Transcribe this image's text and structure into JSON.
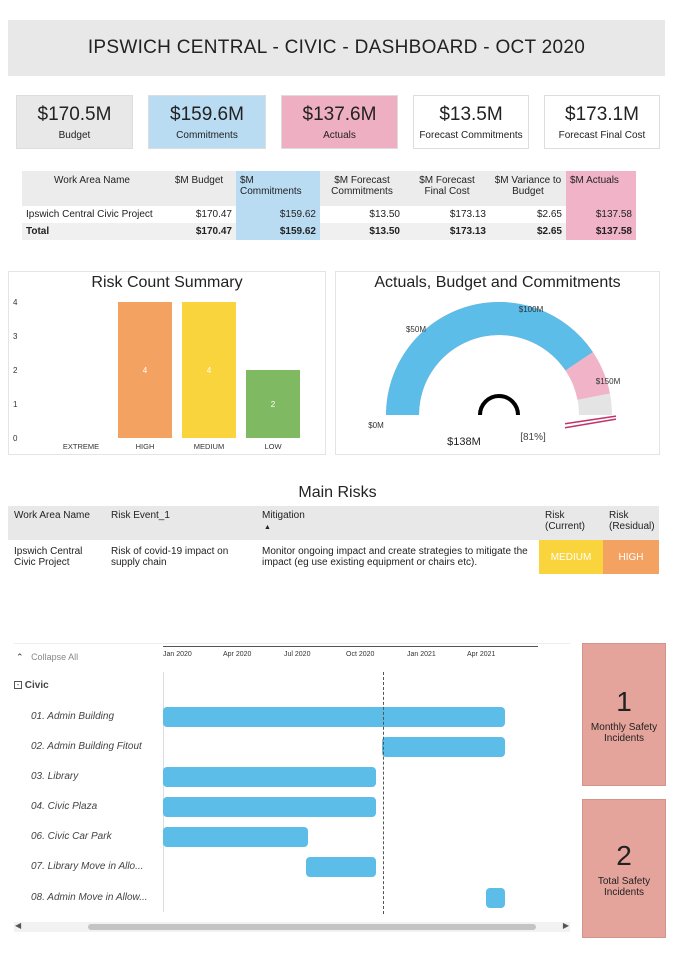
{
  "title": "IPSWICH CENTRAL - CIVIC - DASHBOARD - OCT 2020",
  "kpis": [
    {
      "value": "$170.5M",
      "label": "Budget",
      "color": "#e8e8e8"
    },
    {
      "value": "$159.6M",
      "label": "Commitments",
      "color": "#b9dcf3"
    },
    {
      "value": "$137.6M",
      "label": "Actuals",
      "color": "#efafc3"
    },
    {
      "value": "$13.5M",
      "label": "Forecast Commitments",
      "color": "#ffffff"
    },
    {
      "value": "$173.1M",
      "label": "Forecast Final Cost",
      "color": "#ffffff"
    }
  ],
  "finance_table": {
    "headers": [
      "Work Area Name",
      "$M Budget",
      "$M Commitments",
      "$M Forecast Commitments",
      "$M Forecast Final Cost",
      "$M Variance to Budget",
      "$M Actuals"
    ],
    "row": [
      "Ipswich Central Civic Project",
      "$170.47",
      "$159.62",
      "$13.50",
      "$173.13",
      "$2.65",
      "$137.58"
    ],
    "total": [
      "Total",
      "$170.47",
      "$159.62",
      "$13.50",
      "$173.13",
      "$2.65",
      "$137.58"
    ]
  },
  "risk_chart": {
    "title": "Risk Count Summary",
    "chart_data": {
      "type": "bar",
      "categories": [
        "EXTREME",
        "HIGH",
        "MEDIUM",
        "LOW"
      ],
      "values": [
        0,
        4,
        4,
        2
      ],
      "colors": [
        "#cccccc",
        "#f4a261",
        "#f9d43c",
        "#7fb961"
      ],
      "ylim": [
        0,
        4
      ],
      "yticks": [
        "0",
        "1",
        "2",
        "3",
        "4"
      ],
      "value_labels": [
        "",
        "4",
        "4",
        "2"
      ]
    }
  },
  "gauge": {
    "title": "Actuals, Budget and Commitments",
    "chart_data": {
      "type": "gauge",
      "min": 0,
      "max": 170,
      "actuals": 138,
      "commitments": 159.6,
      "budget": 170.5,
      "tick_labels": [
        "$0M",
        "$50M",
        "$100M",
        "$150M"
      ],
      "value_label": "$138M",
      "percent_label": "[81%]"
    }
  },
  "main_risks": {
    "title": "Main Risks",
    "headers": [
      "Work Area Name",
      "Risk Event_1",
      "Mitigation",
      "Risk (Current)",
      "Risk (Residual)"
    ],
    "row": {
      "area": "Ipswich Central Civic Project",
      "event": "Risk of covid-19 impact on supply chain",
      "mitigation": "Monitor ongoing impact and create strategies to mitigate the impact (eg use existing equipment or chairs etc).",
      "current": "MEDIUM",
      "residual": "HIGH"
    }
  },
  "gantt": {
    "collapse_label": "Collapse All",
    "group": "Civic",
    "months": [
      "Jan 2020",
      "Apr 2020",
      "Jul 2020",
      "Oct 2020",
      "Jan 2021",
      "Apr 2021"
    ],
    "tasks": [
      {
        "name": "01. Admin Building",
        "start": 0,
        "end": 16.5
      },
      {
        "name": "02. Admin Building Fitout",
        "start": 10.6,
        "end": 16.5
      },
      {
        "name": "03. Library",
        "start": 0,
        "end": 10.3
      },
      {
        "name": "04. Civic Plaza",
        "start": 0,
        "end": 10.3
      },
      {
        "name": "06. Civic Car Park",
        "start": 0,
        "end": 7
      },
      {
        "name": "07. Library Move in Allo...",
        "start": 6.9,
        "end": 10.3
      },
      {
        "name": "08. Admin Move in Allow...",
        "start": 15.6,
        "end": 16.5
      }
    ]
  },
  "safety": [
    {
      "count": "1",
      "label": "Monthly Safety Incidents"
    },
    {
      "count": "2",
      "label": "Total Safety Incidents"
    }
  ]
}
